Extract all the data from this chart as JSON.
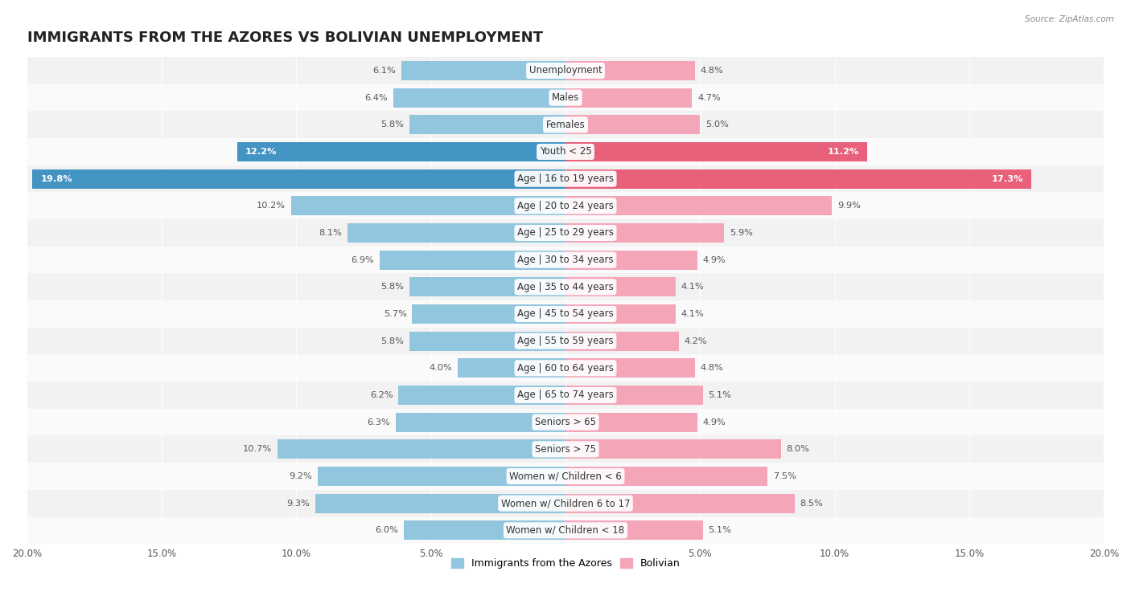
{
  "title": "IMMIGRANTS FROM THE AZORES VS BOLIVIAN UNEMPLOYMENT",
  "source": "Source: ZipAtlas.com",
  "categories": [
    "Unemployment",
    "Males",
    "Females",
    "Youth < 25",
    "Age | 16 to 19 years",
    "Age | 20 to 24 years",
    "Age | 25 to 29 years",
    "Age | 30 to 34 years",
    "Age | 35 to 44 years",
    "Age | 45 to 54 years",
    "Age | 55 to 59 years",
    "Age | 60 to 64 years",
    "Age | 65 to 74 years",
    "Seniors > 65",
    "Seniors > 75",
    "Women w/ Children < 6",
    "Women w/ Children 6 to 17",
    "Women w/ Children < 18"
  ],
  "azores_values": [
    6.1,
    6.4,
    5.8,
    12.2,
    19.8,
    10.2,
    8.1,
    6.9,
    5.8,
    5.7,
    5.8,
    4.0,
    6.2,
    6.3,
    10.7,
    9.2,
    9.3,
    6.0
  ],
  "bolivian_values": [
    4.8,
    4.7,
    5.0,
    11.2,
    17.3,
    9.9,
    5.9,
    4.9,
    4.1,
    4.1,
    4.2,
    4.8,
    5.1,
    4.9,
    8.0,
    7.5,
    8.5,
    5.1
  ],
  "azores_color": "#92c5de",
  "bolivian_color": "#f4a6b8",
  "highlight_azores_color": "#4393c3",
  "highlight_bolivian_color": "#e8607a",
  "xlim": 20.0,
  "bar_height": 0.72,
  "row_colors": [
    "#f2f2f2",
    "#fafafa"
  ],
  "highlight_row_color": "#e8e8e8",
  "legend_label_azores": "Immigrants from the Azores",
  "legend_label_bolivian": "Bolivian",
  "title_fontsize": 13,
  "label_fontsize": 8.5,
  "value_fontsize": 8.2,
  "highlight_indices": [
    3,
    4
  ]
}
